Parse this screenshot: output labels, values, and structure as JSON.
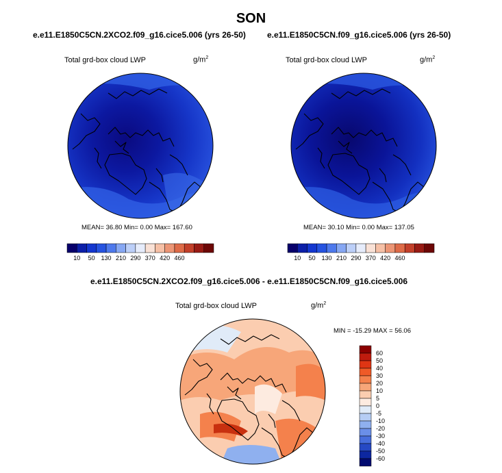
{
  "page": {
    "title": "SON",
    "diff_title": "e.e11.E1850C5CN.2XCO2.f09_g16.cice5.006 - e.e11.E1850C5CN.f09_g16.cice5.006"
  },
  "panels": [
    {
      "case_title": "e.e11.E1850C5CN.2XCO2.f09_g16.cice5.006 (yrs 26-50)",
      "variable": "Total grd-box cloud LWP",
      "units_base": "g/m",
      "units_exp": "2",
      "stats_text": "MEAN=   36.80  Min=    0.00  Max=  167.60"
    },
    {
      "case_title": "e.e11.E1850C5CN.f09_g16.cice5.006 (yrs 26-50)",
      "variable": "Total grd-box cloud LWP",
      "units_base": "g/m",
      "units_exp": "2",
      "stats_text": "MEAN=   30.10  Min=    0.00  Max=  137.05"
    },
    {
      "variable": "Total grd-box cloud LWP",
      "units_base": "g/m",
      "units_exp": "2",
      "stats_text": "MIN = -15.29 MAX =  56.06"
    }
  ],
  "chart_data": [
    {
      "type": "heatmap",
      "projection": "north polar stereographic",
      "title": "e.e11.E1850C5CN.2XCO2.f09_g16.cice5.006 (yrs 26-50)",
      "variable": "Total grd-box cloud LWP",
      "units": "g/m2",
      "mean": 36.8,
      "min": 0.0,
      "max": 167.6,
      "colorbar": {
        "orientation": "horizontal",
        "ticks": [
          "10",
          "50",
          "130",
          "210",
          "290",
          "370",
          "420",
          "460"
        ],
        "colors": [
          "#08006b",
          "#0c1fa8",
          "#1437cf",
          "#2653e0",
          "#4e79ec",
          "#86a7f3",
          "#bccff8",
          "#e6ecfb",
          "#f9e1d6",
          "#f6c0a6",
          "#ec9575",
          "#de6b48",
          "#c3402a",
          "#991b14",
          "#6d0706"
        ]
      }
    },
    {
      "type": "heatmap",
      "projection": "north polar stereographic",
      "title": "e.e11.E1850C5CN.f09_g16.cice5.006 (yrs 26-50)",
      "variable": "Total grd-box cloud LWP",
      "units": "g/m2",
      "mean": 30.1,
      "min": 0.0,
      "max": 137.05,
      "colorbar": {
        "orientation": "horizontal",
        "ticks": [
          "10",
          "50",
          "130",
          "210",
          "290",
          "370",
          "420",
          "460"
        ],
        "colors": [
          "#08006b",
          "#0c1fa8",
          "#1437cf",
          "#2653e0",
          "#4e79ec",
          "#86a7f3",
          "#bccff8",
          "#e6ecfb",
          "#f9e1d6",
          "#f6c0a6",
          "#ec9575",
          "#de6b48",
          "#c3402a",
          "#991b14",
          "#6d0706"
        ]
      }
    },
    {
      "type": "heatmap",
      "projection": "north polar stereographic",
      "title": "e.e11.E1850C5CN.2XCO2.f09_g16.cice5.006 - e.e11.E1850C5CN.f09_g16.cice5.006",
      "variable": "Total grd-box cloud LWP",
      "units": "g/m2",
      "min": -15.29,
      "max": 56.06,
      "colorbar": {
        "orientation": "vertical",
        "ticks": [
          "60",
          "50",
          "40",
          "30",
          "20",
          "10",
          "5",
          "0",
          "-5",
          "-10",
          "-20",
          "-30",
          "-40",
          "-50",
          "-60"
        ],
        "colors": [
          "#8b0000",
          "#bf1b0e",
          "#df3514",
          "#ef5a27",
          "#f4814c",
          "#f7a679",
          "#fbcdb0",
          "#fdebe0",
          "#e0ebf8",
          "#b6cdf4",
          "#8fb0ef",
          "#6a8fe8",
          "#476edc",
          "#2649c4",
          "#0d27a0",
          "#020b70"
        ]
      }
    }
  ]
}
